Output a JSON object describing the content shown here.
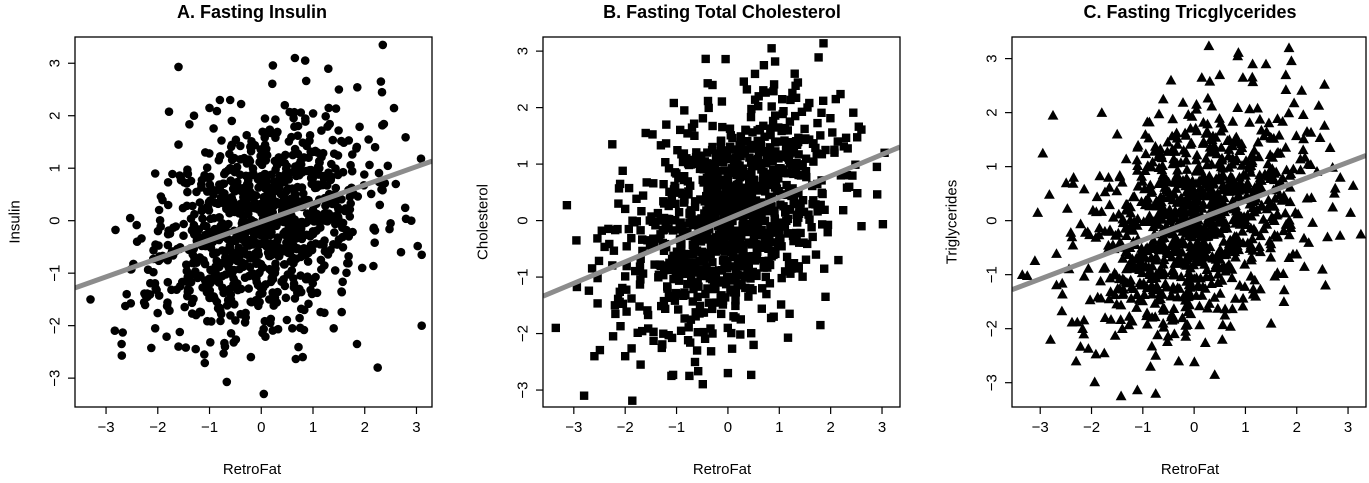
{
  "chart_data": [
    {
      "type": "scatter",
      "title": "A. Fasting Insulin",
      "xlabel": "RetroFat",
      "ylabel": "Insulin",
      "marker": "circle",
      "marker_color": "#000000",
      "fit_line_color": "#8c8c8c",
      "xlim": [
        -3.6,
        3.3
      ],
      "ylim": [
        -3.55,
        3.5
      ],
      "xticks": [
        -3,
        -2,
        -1,
        0,
        1,
        2,
        3
      ],
      "yticks": [
        -3,
        -2,
        -1,
        0,
        1,
        2,
        3
      ],
      "grid": false,
      "fit_line": {
        "slope": 0.35,
        "intercept": -0.02
      },
      "n_points": 1000,
      "point_seed": 11,
      "points": [
        [
          -3.3,
          -1.5
        ],
        [
          -2.7,
          -2.35
        ],
        [
          -2.6,
          -1.4
        ],
        [
          -2.2,
          -1.45
        ],
        [
          -2.05,
          -2.05
        ],
        [
          -1.6,
          -2.4
        ],
        [
          -1.1,
          -2.55
        ],
        [
          -0.7,
          -2.4
        ],
        [
          -0.2,
          -2.6
        ],
        [
          0.05,
          -3.3
        ],
        [
          0.8,
          -2.6
        ],
        [
          1.4,
          -2.05
        ],
        [
          1.85,
          -2.35
        ],
        [
          2.25,
          -2.8
        ],
        [
          3.1,
          -2.0
        ],
        [
          3.1,
          -0.65
        ],
        [
          2.9,
          0.0
        ],
        [
          2.6,
          0.7
        ],
        [
          2.2,
          1.4
        ],
        [
          2.35,
          3.35
        ],
        [
          1.5,
          2.5
        ],
        [
          0.65,
          3.1
        ],
        [
          0.85,
          3.05
        ],
        [
          -0.6,
          2.3
        ],
        [
          -0.8,
          2.3
        ],
        [
          -1.0,
          2.15
        ],
        [
          -1.6,
          1.45
        ],
        [
          -2.05,
          0.9
        ],
        [
          -1.3,
          2.0
        ],
        [
          -0.5,
          -1.9
        ],
        [
          0.6,
          -2.05
        ],
        [
          1.55,
          -1.35
        ],
        [
          1.95,
          -0.9
        ],
        [
          -2.4,
          -0.4
        ],
        [
          2.5,
          -0.05
        ],
        [
          2.7,
          -0.6
        ]
      ]
    },
    {
      "type": "scatter",
      "title": "B. Fasting Total Cholesterol",
      "xlabel": "RetroFat",
      "ylabel": "Cholesterol",
      "marker": "square",
      "marker_color": "#000000",
      "fit_line_color": "#8c8c8c",
      "xlim": [
        -3.6,
        3.35
      ],
      "ylim": [
        -3.3,
        3.25
      ],
      "xticks": [
        -3,
        -2,
        -1,
        0,
        1,
        2,
        3
      ],
      "yticks": [
        -3,
        -2,
        -1,
        0,
        1,
        2,
        3
      ],
      "grid": false,
      "fit_line": {
        "slope": 0.38,
        "intercept": 0.03
      },
      "n_points": 1000,
      "point_seed": 23,
      "points": [
        [
          -2.8,
          -3.1
        ],
        [
          -3.35,
          -1.9
        ],
        [
          -2.95,
          -0.35
        ],
        [
          -2.6,
          -2.4
        ],
        [
          -2.2,
          -1.5
        ],
        [
          -2.0,
          -2.4
        ],
        [
          -1.7,
          -2.55
        ],
        [
          -1.1,
          -2.75
        ],
        [
          -0.75,
          -2.75
        ],
        [
          -0.6,
          -2.3
        ],
        [
          0.0,
          -2.7
        ],
        [
          0.5,
          -2.2
        ],
        [
          1.2,
          -1.65
        ],
        [
          1.8,
          -1.85
        ],
        [
          1.9,
          -1.35
        ],
        [
          2.15,
          -0.7
        ],
        [
          2.6,
          -0.1
        ],
        [
          3.05,
          1.2
        ],
        [
          2.9,
          0.95
        ],
        [
          2.2,
          0.8
        ],
        [
          2.1,
          2.15
        ],
        [
          1.9,
          1.25
        ],
        [
          1.3,
          2.6
        ],
        [
          0.85,
          3.05
        ],
        [
          0.7,
          2.75
        ],
        [
          0.6,
          2.2
        ],
        [
          -0.3,
          2.4
        ],
        [
          -0.85,
          1.95
        ],
        [
          -1.6,
          1.55
        ],
        [
          -2.1,
          0.65
        ],
        [
          -2.25,
          1.35
        ],
        [
          -1.2,
          1.7
        ],
        [
          -2.15,
          -0.15
        ],
        [
          0.25,
          -1.75
        ]
      ]
    },
    {
      "type": "scatter",
      "title": "C. Fasting Tricglycerides",
      "xlabel": "RetroFat",
      "ylabel": "Triglycerides",
      "marker": "triangle",
      "marker_color": "#000000",
      "fit_line_color": "#8c8c8c",
      "xlim": [
        -3.55,
        3.35
      ],
      "ylim": [
        -3.45,
        3.4
      ],
      "xticks": [
        -3,
        -2,
        -1,
        0,
        1,
        2,
        3
      ],
      "yticks": [
        -3,
        -2,
        -1,
        0,
        1,
        2,
        3
      ],
      "grid": false,
      "fit_line": {
        "slope": 0.36,
        "intercept": 0.0
      },
      "n_points": 1000,
      "point_seed": 37,
      "points": [
        [
          -3.35,
          -1.0
        ],
        [
          -3.05,
          0.15
        ],
        [
          -2.95,
          1.25
        ],
        [
          -2.75,
          1.95
        ],
        [
          -2.8,
          -2.2
        ],
        [
          -2.3,
          -2.6
        ],
        [
          -2.15,
          -2.1
        ],
        [
          -1.75,
          -2.45
        ],
        [
          -1.4,
          -2.0
        ],
        [
          -0.85,
          -2.7
        ],
        [
          -0.75,
          -3.2
        ],
        [
          -0.3,
          -2.6
        ],
        [
          0.4,
          -2.85
        ],
        [
          0.55,
          -2.2
        ],
        [
          0.6,
          -1.75
        ],
        [
          1.2,
          -1.4
        ],
        [
          1.5,
          -1.9
        ],
        [
          1.75,
          -1.5
        ],
        [
          2.15,
          -0.85
        ],
        [
          2.5,
          -0.9
        ],
        [
          2.6,
          -0.3
        ],
        [
          2.7,
          0.25
        ],
        [
          2.75,
          0.6
        ],
        [
          3.05,
          0.15
        ],
        [
          2.85,
          0.8
        ],
        [
          3.25,
          -0.25
        ],
        [
          3.1,
          0.65
        ],
        [
          2.65,
          1.35
        ],
        [
          2.2,
          1.65
        ],
        [
          1.85,
          3.2
        ],
        [
          1.4,
          2.9
        ],
        [
          0.85,
          3.05
        ],
        [
          0.95,
          2.65
        ],
        [
          0.5,
          2.7
        ],
        [
          0.15,
          2.65
        ],
        [
          -0.45,
          2.6
        ],
        [
          -0.6,
          2.25
        ],
        [
          -1.8,
          2.0
        ],
        [
          -1.5,
          1.6
        ],
        [
          -2.35,
          0.8
        ]
      ]
    }
  ]
}
